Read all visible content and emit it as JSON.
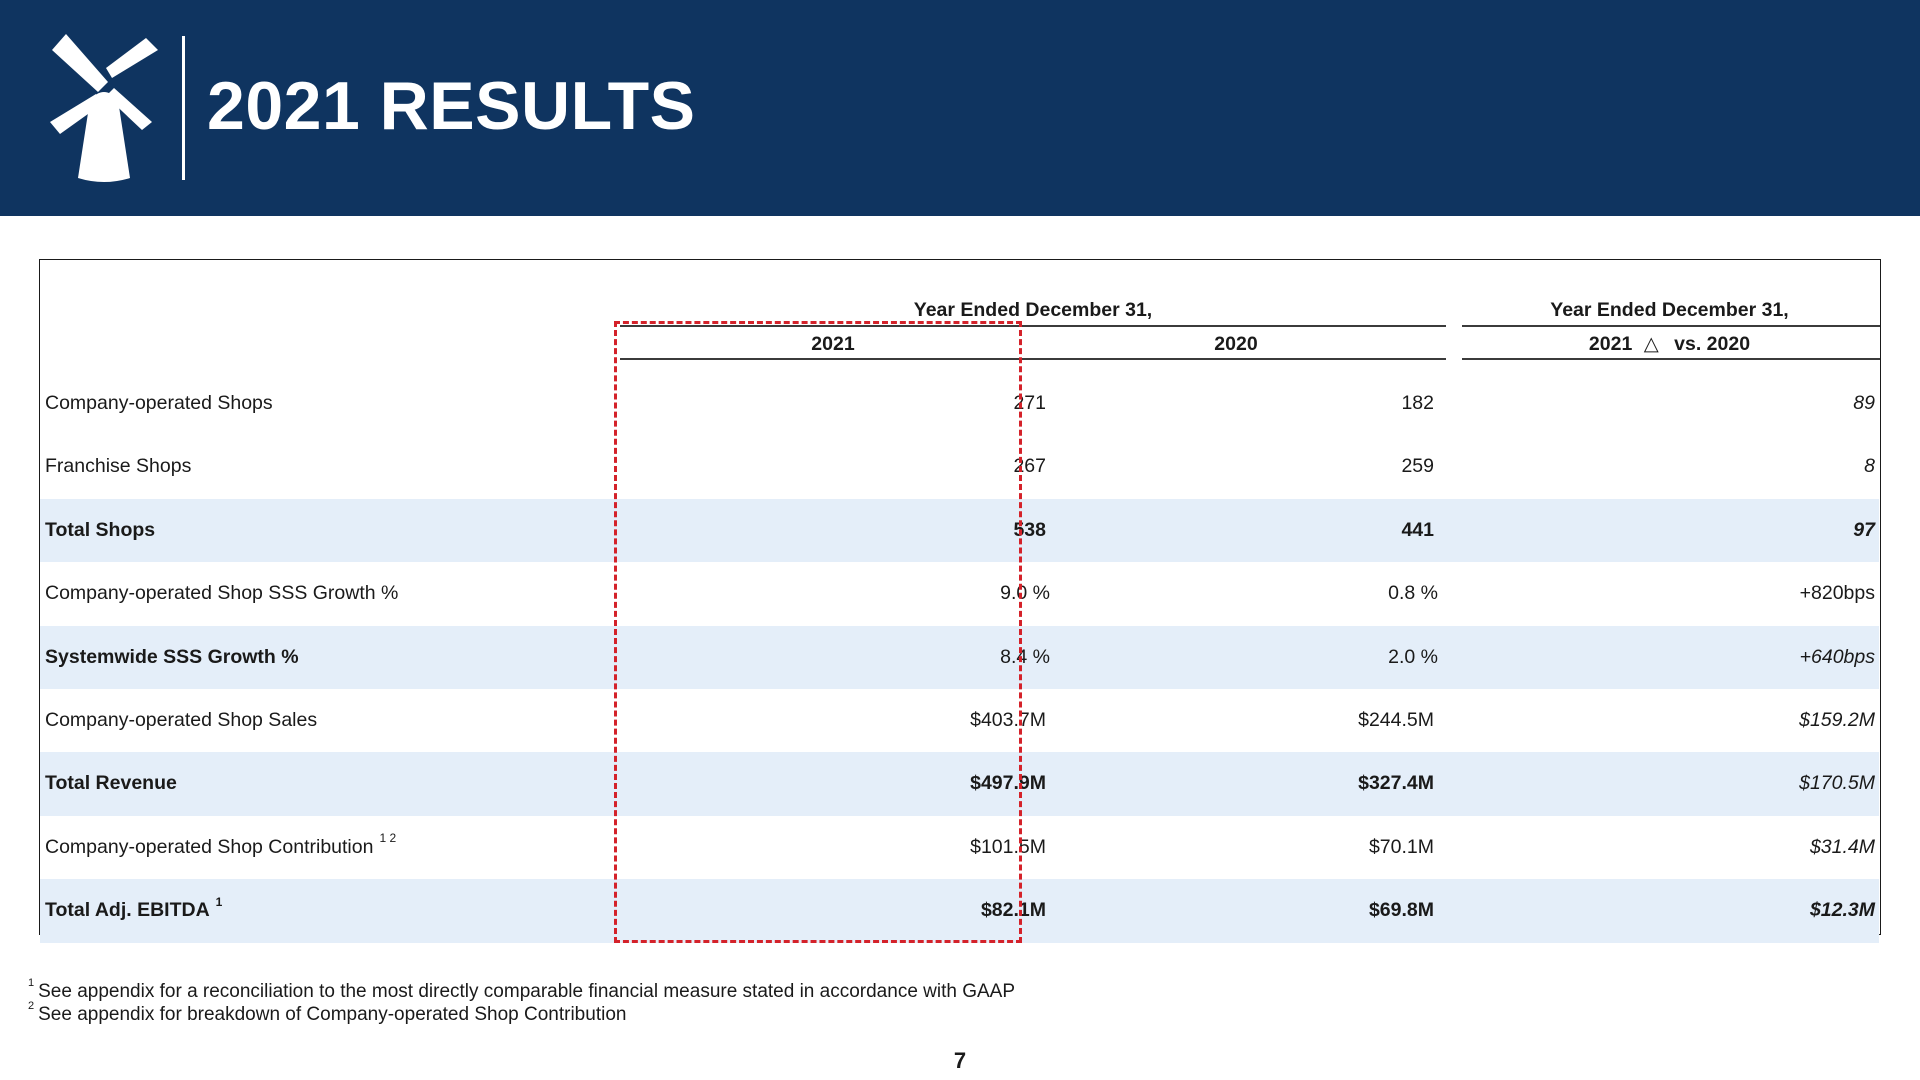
{
  "header": {
    "title": "2021 RESULTS",
    "logo_icon": "windmill-icon",
    "background_color": "#0f3460"
  },
  "table": {
    "group_headers": {
      "years": "Year Ended December 31,",
      "change": "Year Ended December 31,"
    },
    "columns": {
      "y2021": "2021",
      "y2020": "2020",
      "change_prefix": "2021",
      "change_glyph": "△",
      "change_suffix": "vs. 2020"
    },
    "rows": [
      {
        "label": "Company-operated Shops",
        "v2021": "271",
        "v2020": "182",
        "change": "89"
      },
      {
        "label": "Franchise Shops",
        "v2021": "267",
        "v2020": "259",
        "change": "8"
      },
      {
        "label": "Total Shops",
        "v2021": "538",
        "v2020": "441",
        "change": "97"
      },
      {
        "label": "Company-operated Shop SSS Growth %",
        "v2021": "9.0 %",
        "v2020": "0.8 %",
        "change": "+820bps"
      },
      {
        "label": "Systemwide SSS Growth %",
        "v2021": "8.4 %",
        "v2020": "2.0 %",
        "change": "+640bps"
      },
      {
        "label": "Company-operated Shop Sales",
        "v2021": "$403.7M",
        "v2020": "$244.5M",
        "change": "$159.2M"
      },
      {
        "label": "Total Revenue",
        "v2021": "$497.9M",
        "v2020": "$327.4M",
        "change": "$170.5M"
      },
      {
        "label": "Company-operated Shop Contribution",
        "sup": "1 2",
        "v2021": "$101.5M",
        "v2020": "$70.1M",
        "change": "$31.4M"
      },
      {
        "label": "Total Adj. EBITDA",
        "sup": "1",
        "v2021": "$82.1M",
        "v2020": "$69.8M",
        "change": "$12.3M"
      }
    ],
    "row_shade_color": "#e4eef9",
    "highlight_color": "#d4222a"
  },
  "footnotes": [
    {
      "marker": "1",
      "text": "See appendix for a reconciliation to the most directly comparable financial measure stated in accordance with GAAP"
    },
    {
      "marker": "2",
      "text": "See appendix for breakdown of Company-operated Shop Contribution"
    }
  ],
  "page_number": "7"
}
